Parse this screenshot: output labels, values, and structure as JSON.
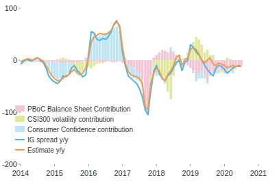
{
  "chart_data": {
    "type": "bar",
    "stacked": true,
    "legend": "lower left",
    "grid": false,
    "x": [
      2014,
      2014.08,
      2014.17,
      2014.25,
      2014.33,
      2014.42,
      2014.5,
      2014.58,
      2014.67,
      2014.75,
      2014.83,
      2014.92,
      2015,
      2015.08,
      2015.17,
      2015.25,
      2015.33,
      2015.42,
      2015.5,
      2015.58,
      2015.67,
      2015.75,
      2015.83,
      2015.92,
      2016,
      2016.08,
      2016.17,
      2016.25,
      2016.33,
      2016.42,
      2016.5,
      2016.58,
      2016.67,
      2016.75,
      2016.83,
      2016.92,
      2017,
      2017.08,
      2017.17,
      2017.25,
      2017.33,
      2017.42,
      2017.5,
      2017.58,
      2017.67,
      2017.75,
      2017.83,
      2017.92,
      2018,
      2018.08,
      2018.17,
      2018.25,
      2018.33,
      2018.42,
      2018.5,
      2018.58,
      2018.67,
      2018.75,
      2018.83,
      2018.92,
      2019,
      2019.08,
      2019.17,
      2019.25,
      2019.33,
      2019.42,
      2019.5,
      2019.58,
      2019.67,
      2019.75,
      2019.83,
      2019.92,
      2020,
      2020.08,
      2020.17,
      2020.25,
      2020.33,
      2020.42,
      2020.5
    ],
    "xlim": [
      2014,
      2021
    ],
    "xticks": [
      2014,
      2015,
      2016,
      2017,
      2018,
      2019,
      2020,
      2021
    ],
    "ylim": [
      -200,
      100
    ],
    "yticks": [
      -200,
      -100,
      0,
      100
    ],
    "series": [
      {
        "name": "PBoC Balance Sheet Contribution",
        "type": "bar",
        "color": "#f3c6d5",
        "values": [
          0,
          -2,
          -3,
          -2,
          -3,
          -2,
          -3,
          -4,
          -3,
          -2,
          -3,
          -4,
          -3,
          -5,
          -4,
          -5,
          -6,
          -5,
          -6,
          -5,
          -4,
          -3,
          -2,
          -3,
          -3,
          -4,
          -3,
          -2,
          -3,
          -4,
          -3,
          -2,
          -3,
          -4,
          -3,
          -2,
          -5,
          -8,
          -10,
          -12,
          -15,
          -20,
          -25,
          -40,
          -90,
          -95,
          -30,
          5,
          10,
          15,
          20,
          18,
          15,
          20,
          12,
          8,
          5,
          0,
          -5,
          -10,
          -15,
          -20,
          -30,
          -25,
          -20,
          -25,
          -40,
          -30,
          -25,
          -20,
          -15,
          -20,
          -25,
          -20,
          -15,
          -15,
          -12,
          -10,
          -10
        ]
      },
      {
        "name": "CSI300 volatility contribution",
        "type": "bar",
        "color": "#dfe99b",
        "values": [
          0,
          0,
          1,
          0,
          0,
          1,
          0,
          0,
          0,
          0,
          -1,
          0,
          0,
          2,
          3,
          5,
          3,
          2,
          -5,
          -12,
          -18,
          -22,
          -20,
          -15,
          -10,
          -12,
          -8,
          -5,
          -3,
          -2,
          0,
          0,
          0,
          0,
          0,
          0,
          0,
          0,
          0,
          0,
          0,
          0,
          0,
          0,
          -3,
          -5,
          -10,
          -15,
          -20,
          -25,
          -30,
          -40,
          -60,
          -75,
          -30,
          -10,
          -5,
          0,
          5,
          10,
          20,
          35,
          45,
          40,
          30,
          15,
          20,
          10,
          5,
          0,
          -5,
          -3,
          0,
          5,
          3,
          -5,
          -3,
          0,
          0
        ]
      },
      {
        "name": "Consumer Confidence contribution",
        "type": "bar",
        "color": "#bde5f3",
        "values": [
          -5,
          -3,
          0,
          2,
          0,
          -2,
          0,
          2,
          0,
          -5,
          -15,
          -25,
          -30,
          -35,
          -30,
          -25,
          -22,
          -20,
          -10,
          -5,
          -2,
          0,
          0,
          5,
          15,
          45,
          50,
          45,
          48,
          50,
          52,
          55,
          58,
          62,
          65,
          55,
          25,
          5,
          -10,
          -15,
          -20,
          -18,
          -15,
          -10,
          -5,
          -3,
          -10,
          -15,
          -10,
          -5,
          -8,
          -5,
          0,
          5,
          5,
          3,
          5,
          3,
          0,
          5,
          5,
          -5,
          -10,
          -10,
          -15,
          -10,
          -5,
          0,
          5,
          -5,
          -5,
          0,
          0,
          -5,
          -3,
          -5,
          -2,
          -2,
          0
        ]
      },
      {
        "name": "IG spread y/y",
        "type": "line",
        "color": "#4db3e8",
        "values": [
          -8,
          -3,
          2,
          0,
          -2,
          3,
          5,
          0,
          -5,
          -15,
          -30,
          -38,
          -42,
          -45,
          -40,
          -30,
          -32,
          -28,
          -15,
          -10,
          -20,
          -25,
          -32,
          -28,
          10,
          55,
          52,
          40,
          38,
          42,
          40,
          45,
          55,
          70,
          76,
          62,
          15,
          -10,
          -30,
          -35,
          -40,
          -45,
          -55,
          -70,
          -95,
          -105,
          -60,
          -22,
          -10,
          -25,
          -35,
          -40,
          -30,
          -25,
          -15,
          -5,
          0,
          -20,
          -5,
          0,
          30,
          25,
          15,
          10,
          0,
          -10,
          -18,
          -25,
          -30,
          -15,
          -10,
          -12,
          -18,
          -25,
          -20,
          -15,
          -12,
          -10,
          -12
        ]
      },
      {
        "name": "Estimate y/y",
        "type": "line",
        "color": "#f59a4b",
        "values": [
          -3,
          0,
          2,
          3,
          0,
          2,
          4,
          2,
          -2,
          -10,
          -20,
          -30,
          -35,
          -40,
          -38,
          -35,
          -30,
          -28,
          -22,
          -18,
          -25,
          -28,
          -25,
          -15,
          5,
          35,
          45,
          48,
          52,
          50,
          50,
          52,
          58,
          68,
          74,
          66,
          25,
          -5,
          -22,
          -28,
          -30,
          -32,
          -35,
          -45,
          -90,
          -95,
          -45,
          -25,
          -15,
          -20,
          -35,
          -40,
          -28,
          -20,
          -10,
          5,
          10,
          -10,
          0,
          5,
          20,
          25,
          20,
          12,
          0,
          -5,
          0,
          5,
          -8,
          -10,
          -5,
          -8,
          -10,
          -15,
          -12,
          -10,
          -12,
          -12,
          -12
        ]
      }
    ]
  }
}
